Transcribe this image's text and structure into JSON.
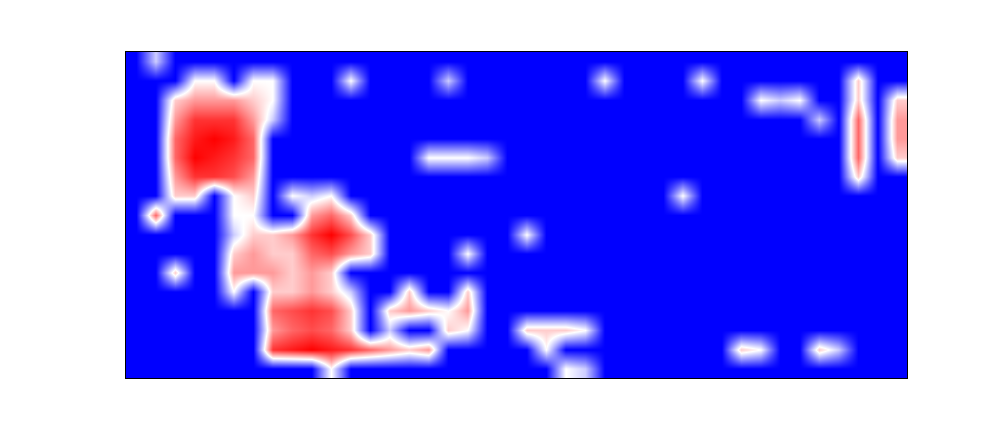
{
  "chart_data": {
    "type": "heatmap",
    "tick_labels": false,
    "zlim": [
      0,
      1
    ],
    "cells": [
      [
        0,
        0.4,
        0,
        0,
        0,
        0,
        0,
        0,
        0,
        0,
        0,
        0,
        0,
        0,
        0,
        0,
        0,
        0,
        0,
        0,
        0,
        0,
        0,
        0,
        0,
        0,
        0,
        0,
        0,
        0,
        0,
        0,
        0,
        0,
        0,
        0,
        0,
        0,
        0,
        0
      ],
      [
        0,
        0,
        0,
        0.5,
        0.5,
        0,
        0.5,
        0.5,
        0,
        0,
        0,
        0.5,
        0,
        0,
        0,
        0,
        0.4,
        0,
        0,
        0,
        0,
        0,
        0,
        0,
        0.5,
        0,
        0,
        0,
        0,
        0.5,
        0,
        0,
        0,
        0,
        0,
        0,
        0,
        0.6,
        0,
        0
      ],
      [
        0,
        0,
        0.6,
        0.7,
        0.7,
        0.7,
        0.6,
        0.5,
        0,
        0,
        0,
        0,
        0,
        0,
        0,
        0,
        0,
        0,
        0,
        0,
        0,
        0,
        0,
        0,
        0,
        0,
        0,
        0,
        0,
        0,
        0,
        0,
        0.5,
        0.4,
        0.5,
        0,
        0,
        0.6,
        0,
        0.6
      ],
      [
        0,
        0,
        0.7,
        0.9,
        0.9,
        0.9,
        0.7,
        0.4,
        0,
        0,
        0,
        0,
        0,
        0,
        0,
        0,
        0,
        0,
        0,
        0,
        0,
        0,
        0,
        0,
        0,
        0,
        0,
        0,
        0,
        0,
        0,
        0,
        0,
        0,
        0,
        0.4,
        0,
        0.8,
        0,
        0.7
      ],
      [
        0,
        0,
        0.8,
        0.95,
        1,
        0.95,
        0.8,
        0,
        0,
        0,
        0,
        0,
        0,
        0,
        0,
        0,
        0,
        0,
        0,
        0,
        0,
        0,
        0,
        0,
        0,
        0,
        0,
        0,
        0,
        0,
        0,
        0,
        0,
        0,
        0,
        0,
        0,
        0.8,
        0,
        0.7
      ],
      [
        0,
        0,
        0.8,
        1,
        0.95,
        0.9,
        0.8,
        0,
        0,
        0,
        0,
        0,
        0,
        0,
        0,
        0.5,
        0.5,
        0.5,
        0.4,
        0,
        0,
        0,
        0,
        0,
        0,
        0,
        0,
        0,
        0,
        0,
        0,
        0,
        0,
        0,
        0,
        0,
        0,
        0.8,
        0,
        0.6
      ],
      [
        0,
        0,
        0.7,
        0.9,
        0.9,
        0.85,
        0.7,
        0,
        0,
        0,
        0,
        0,
        0,
        0,
        0,
        0,
        0,
        0,
        0,
        0,
        0,
        0,
        0,
        0,
        0,
        0,
        0,
        0,
        0,
        0,
        0,
        0,
        0,
        0,
        0,
        0,
        0,
        0.6,
        0,
        0
      ],
      [
        0,
        0,
        0.6,
        0.6,
        0,
        0.5,
        0.6,
        0,
        0.5,
        0.4,
        0.5,
        0,
        0,
        0,
        0,
        0,
        0,
        0,
        0,
        0,
        0,
        0,
        0,
        0,
        0,
        0,
        0,
        0,
        0.5,
        0,
        0,
        0,
        0,
        0,
        0,
        0,
        0,
        0,
        0,
        0
      ],
      [
        0,
        0.8,
        0,
        0,
        0,
        0.5,
        0.5,
        0,
        0,
        0.7,
        0.8,
        0.6,
        0,
        0,
        0,
        0,
        0,
        0,
        0,
        0,
        0,
        0,
        0,
        0,
        0,
        0,
        0,
        0,
        0,
        0,
        0,
        0,
        0,
        0,
        0,
        0,
        0,
        0,
        0,
        0
      ],
      [
        0,
        0,
        0,
        0,
        0,
        0.4,
        0.6,
        0.6,
        0.7,
        0.9,
        1,
        0.85,
        0.6,
        0,
        0,
        0,
        0,
        0,
        0,
        0,
        0.5,
        0,
        0,
        0,
        0,
        0,
        0,
        0,
        0,
        0,
        0,
        0,
        0,
        0,
        0,
        0,
        0,
        0,
        0,
        0
      ],
      [
        0,
        0,
        0,
        0,
        0,
        0.6,
        0.7,
        0.6,
        0.6,
        0.8,
        0.85,
        0.7,
        0.6,
        0,
        0,
        0,
        0,
        0.5,
        0,
        0,
        0,
        0,
        0,
        0,
        0,
        0,
        0,
        0,
        0,
        0,
        0,
        0,
        0,
        0,
        0,
        0,
        0,
        0,
        0,
        0
      ],
      [
        0,
        0,
        0.6,
        0,
        0,
        0.7,
        0.7,
        0.7,
        0.6,
        0.7,
        0.6,
        0,
        0,
        0,
        0,
        0,
        0,
        0,
        0,
        0,
        0,
        0,
        0,
        0,
        0,
        0,
        0,
        0,
        0,
        0,
        0,
        0,
        0,
        0,
        0,
        0,
        0,
        0,
        0,
        0
      ],
      [
        0,
        0,
        0,
        0,
        0,
        0.5,
        0,
        0.6,
        0.6,
        0.7,
        0.6,
        0.4,
        0,
        0,
        0.6,
        0,
        0,
        0.6,
        0,
        0,
        0,
        0,
        0,
        0,
        0,
        0,
        0,
        0,
        0,
        0,
        0,
        0,
        0,
        0,
        0,
        0,
        0,
        0,
        0,
        0
      ],
      [
        0,
        0,
        0,
        0,
        0,
        0,
        0,
        0.8,
        0.85,
        0.9,
        0.85,
        0.6,
        0,
        0.6,
        0.7,
        0.6,
        0.5,
        0.7,
        0,
        0,
        0,
        0,
        0,
        0,
        0,
        0,
        0,
        0,
        0,
        0,
        0,
        0,
        0,
        0,
        0,
        0,
        0,
        0,
        0,
        0
      ],
      [
        0,
        0,
        0,
        0,
        0,
        0,
        0,
        0.7,
        0.8,
        0.85,
        0.8,
        0.6,
        0,
        0.4,
        0,
        0,
        0.6,
        0.5,
        0,
        0,
        0.6,
        0.6,
        0.6,
        0.5,
        0,
        0,
        0,
        0,
        0,
        0,
        0,
        0,
        0,
        0,
        0,
        0,
        0,
        0,
        0,
        0
      ],
      [
        0,
        0,
        0,
        0,
        0,
        0,
        0,
        0.9,
        0.95,
        1,
        0.95,
        0.9,
        0.8,
        0.7,
        0.6,
        0.7,
        0,
        0,
        0,
        0,
        0,
        0.5,
        0,
        0,
        0,
        0,
        0,
        0,
        0,
        0,
        0,
        0.6,
        0.5,
        0,
        0,
        0.6,
        0.4,
        0,
        0,
        0
      ],
      [
        0,
        0,
        0,
        0,
        0,
        0,
        0,
        0,
        0,
        0,
        0.5,
        0,
        0,
        0,
        0,
        0,
        0,
        0,
        0,
        0,
        0,
        0,
        0.5,
        0.4,
        0,
        0,
        0,
        0,
        0,
        0,
        0,
        0,
        0,
        0,
        0,
        0,
        0,
        0,
        0,
        0
      ]
    ]
  }
}
